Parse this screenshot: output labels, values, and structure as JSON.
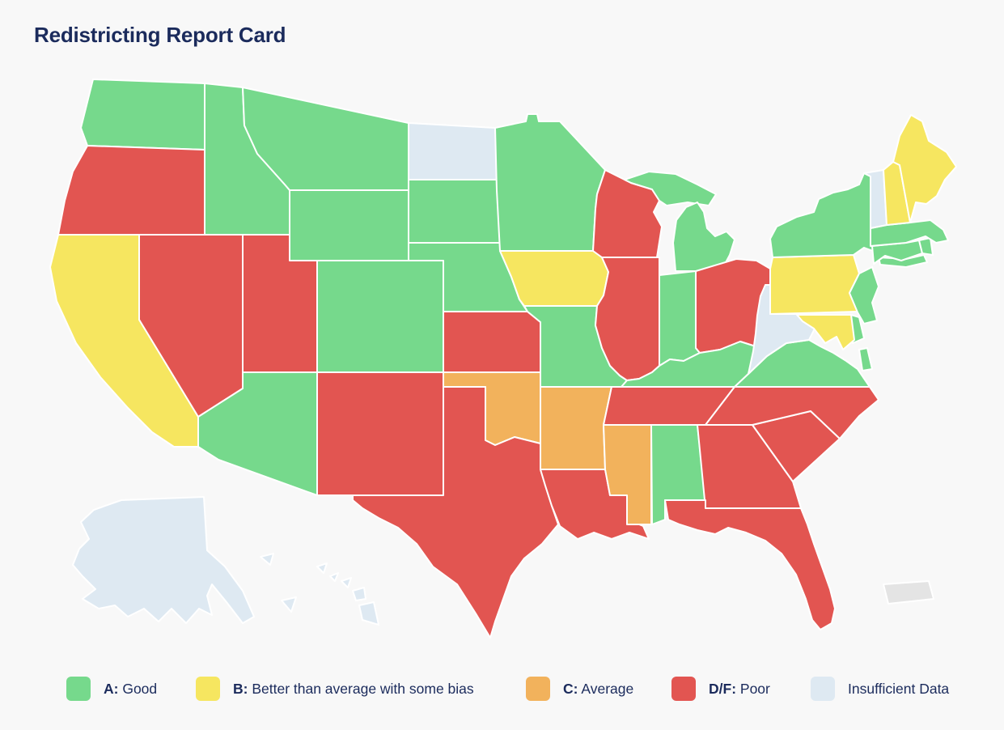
{
  "title": "Redistricting Report Card",
  "legend": {
    "items": [
      {
        "key": "A",
        "label_bold": "A:",
        "label_rest": " Good",
        "color": "#76D98C"
      },
      {
        "key": "B",
        "label_bold": "B:",
        "label_rest": " Better than average with some bias",
        "color": "#F6E660"
      },
      {
        "key": "C",
        "label_bold": "C:",
        "label_rest": " Average",
        "color": "#F2B25C"
      },
      {
        "key": "DF",
        "label_bold": "D/F:",
        "label_rest": " Poor",
        "color": "#E25551"
      },
      {
        "key": "ND",
        "label_bold": "",
        "label_rest": "Insufficient Data",
        "color": "#DEE9F2"
      }
    ]
  },
  "no_grade_color": "#E4E4E4",
  "text_color": "#1B2B5C",
  "chart_data": {
    "type": "choropleth",
    "title": "Redistricting Report Card",
    "region": "United States",
    "legend_position": "bottom",
    "grade_scale": {
      "A": "Good",
      "B": "Better than average with some bias",
      "C": "Average",
      "DF": "Poor",
      "ND": "Insufficient Data"
    },
    "states": [
      {
        "id": "WA",
        "name": "Washington",
        "grade": "A"
      },
      {
        "id": "OR",
        "name": "Oregon",
        "grade": "DF"
      },
      {
        "id": "CA",
        "name": "California",
        "grade": "B"
      },
      {
        "id": "ID",
        "name": "Idaho",
        "grade": "A"
      },
      {
        "id": "NV",
        "name": "Nevada",
        "grade": "DF"
      },
      {
        "id": "MT",
        "name": "Montana",
        "grade": "A"
      },
      {
        "id": "WY",
        "name": "Wyoming",
        "grade": "A"
      },
      {
        "id": "UT",
        "name": "Utah",
        "grade": "DF"
      },
      {
        "id": "CO",
        "name": "Colorado",
        "grade": "A"
      },
      {
        "id": "AZ",
        "name": "Arizona",
        "grade": "A"
      },
      {
        "id": "NM",
        "name": "New Mexico",
        "grade": "DF"
      },
      {
        "id": "ND",
        "name": "North Dakota",
        "grade": "ND"
      },
      {
        "id": "SD",
        "name": "South Dakota",
        "grade": "A"
      },
      {
        "id": "NE",
        "name": "Nebraska",
        "grade": "A"
      },
      {
        "id": "KS",
        "name": "Kansas",
        "grade": "DF"
      },
      {
        "id": "OK",
        "name": "Oklahoma",
        "grade": "C"
      },
      {
        "id": "TX",
        "name": "Texas",
        "grade": "DF"
      },
      {
        "id": "MN",
        "name": "Minnesota",
        "grade": "A"
      },
      {
        "id": "IA",
        "name": "Iowa",
        "grade": "B"
      },
      {
        "id": "MO",
        "name": "Missouri",
        "grade": "A"
      },
      {
        "id": "AR",
        "name": "Arkansas",
        "grade": "C"
      },
      {
        "id": "LA",
        "name": "Louisiana",
        "grade": "DF"
      },
      {
        "id": "WI",
        "name": "Wisconsin",
        "grade": "DF"
      },
      {
        "id": "IL",
        "name": "Illinois",
        "grade": "DF"
      },
      {
        "id": "MS",
        "name": "Mississippi",
        "grade": "C"
      },
      {
        "id": "MI",
        "name": "Michigan",
        "grade": "A"
      },
      {
        "id": "IN",
        "name": "Indiana",
        "grade": "A"
      },
      {
        "id": "OH",
        "name": "Ohio",
        "grade": "DF"
      },
      {
        "id": "KY",
        "name": "Kentucky",
        "grade": "A"
      },
      {
        "id": "TN",
        "name": "Tennessee",
        "grade": "DF"
      },
      {
        "id": "AL",
        "name": "Alabama",
        "grade": "A"
      },
      {
        "id": "GA",
        "name": "Georgia",
        "grade": "DF"
      },
      {
        "id": "FL",
        "name": "Florida",
        "grade": "DF"
      },
      {
        "id": "SC",
        "name": "South Carolina",
        "grade": "DF"
      },
      {
        "id": "NC",
        "name": "North Carolina",
        "grade": "DF"
      },
      {
        "id": "VA",
        "name": "Virginia",
        "grade": "A"
      },
      {
        "id": "WV",
        "name": "West Virginia",
        "grade": "ND"
      },
      {
        "id": "PA",
        "name": "Pennsylvania",
        "grade": "B"
      },
      {
        "id": "NY",
        "name": "New York",
        "grade": "A"
      },
      {
        "id": "NJ",
        "name": "New Jersey",
        "grade": "A"
      },
      {
        "id": "DE",
        "name": "Delaware",
        "grade": "A"
      },
      {
        "id": "MD",
        "name": "Maryland",
        "grade": "B"
      },
      {
        "id": "CT",
        "name": "Connecticut",
        "grade": "A"
      },
      {
        "id": "RI",
        "name": "Rhode Island",
        "grade": "A"
      },
      {
        "id": "MA",
        "name": "Massachusetts",
        "grade": "A"
      },
      {
        "id": "VT",
        "name": "Vermont",
        "grade": "ND"
      },
      {
        "id": "NH",
        "name": "New Hampshire",
        "grade": "B"
      },
      {
        "id": "ME",
        "name": "Maine",
        "grade": "B"
      },
      {
        "id": "AK",
        "name": "Alaska",
        "grade": "ND"
      },
      {
        "id": "HI",
        "name": "Hawaii",
        "grade": "ND"
      },
      {
        "id": "PR",
        "name": "Puerto Rico",
        "grade": null
      }
    ]
  }
}
